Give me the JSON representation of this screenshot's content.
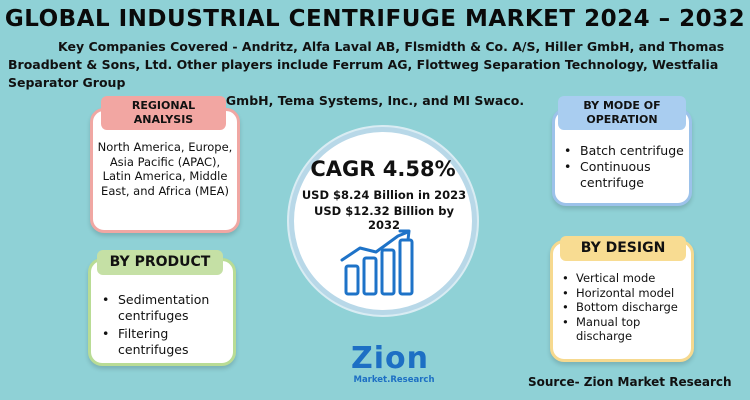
{
  "title": "GLOBAL INDUSTRIAL CENTRIFUGE MARKET 2024 – 2032",
  "companies": {
    "line1": "Key Companies Covered - Andritz, Alfa Laval AB, Flsmidth & Co. A/S, Hiller GmbH, and Thomas Broadbent & Sons, Ltd. Other players include Ferrum AG, Flottweg Separation Technology, Westfalia Separator Group",
    "line2": "GmbH, Tema Systems, Inc., and MI Swaco."
  },
  "regional": {
    "heading": "REGIONAL ANALYSIS",
    "text": "North America, Europe, Asia Pacific (APAC), Latin America, Middle East, and Africa (MEA)",
    "border_color": "#f0a7a3"
  },
  "product": {
    "heading": "BY PRODUCT",
    "items": [
      "Sedimentation centrifuges",
      "Filtering centrifuges"
    ],
    "border_color": "#b9dc95"
  },
  "mode": {
    "heading": "BY MODE OF OPERATION",
    "items": [
      "Batch centrifuge",
      "Continuous centrifuge"
    ],
    "border_color": "#9cc2ea"
  },
  "design": {
    "heading": "BY DESIGN",
    "items": [
      "Vertical mode",
      "Horizontal model",
      "Bottom discharge",
      "Manual top discharge"
    ],
    "border_color": "#f6d98f"
  },
  "center": {
    "cagr": "CAGR 4.58%",
    "usd_2023": "USD $8.24 Billion  in 2023",
    "usd_2032": "USD $12.32 Billion  by 2032",
    "icon": "growth-chart-icon"
  },
  "logo": {
    "main": "Zion",
    "sub": "Market.Research",
    "color": "#1d6fc4"
  },
  "source": "Source- Zion Market Research",
  "colors": {
    "background": "#8fd1d6"
  }
}
